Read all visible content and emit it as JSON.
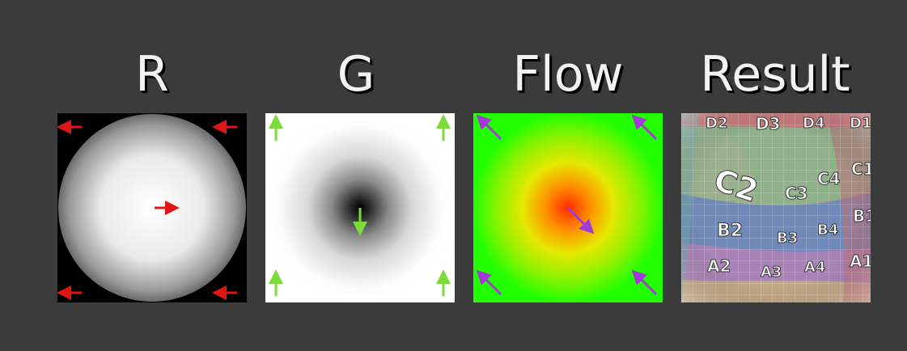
{
  "labels": {
    "r": "R",
    "g": "G",
    "flow": "Flow",
    "result": "Result"
  },
  "colors": {
    "background": "#3b3b3b",
    "label": "#f2f2f2",
    "r_arrow": "#e01515",
    "g_arrow": "#7bdc3a",
    "flow_arrow": "#a23bd6",
    "flow_center": "#ff3a00",
    "flow_edge": "#22ff00"
  },
  "result_tiles": {
    "top_row": [
      "D2",
      "D3",
      "D4",
      "D1"
    ],
    "row_c": [
      "C2",
      "C3",
      "C4",
      "C1"
    ],
    "row_b": [
      "B2",
      "B3",
      "B4",
      "B1"
    ],
    "row_a": [
      "A2",
      "A3",
      "A4",
      "A1"
    ]
  }
}
